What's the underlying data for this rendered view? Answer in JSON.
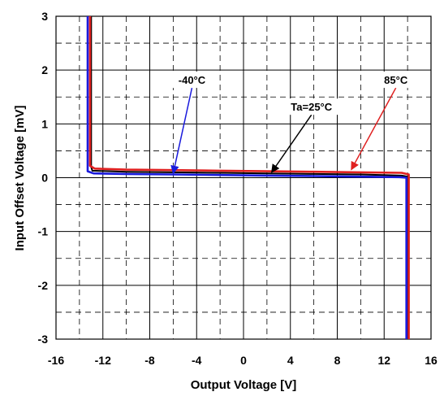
{
  "chart_data": {
    "type": "line",
    "title": "",
    "xlabel": "Output Voltage [V]",
    "ylabel": "Input Offset Voltage [mV]",
    "xlim": [
      -16,
      16
    ],
    "ylim": [
      -3,
      3
    ],
    "x_ticks": [
      -16,
      -12,
      -8,
      -4,
      0,
      4,
      8,
      12,
      16
    ],
    "y_ticks": [
      -3,
      -2,
      -1,
      0,
      1,
      2,
      3
    ],
    "x_minor_step": 2,
    "y_minor_step": 0.5,
    "grid": true,
    "legend": "none",
    "series": [
      {
        "name": "Ta=25°C",
        "color": "#000000",
        "x": [
          -13.0,
          -13.0,
          -12.9,
          -10,
          -6,
          -2,
          2,
          6,
          10,
          13.5,
          14.0,
          14.0
        ],
        "y": [
          3.0,
          0.2,
          0.13,
          0.11,
          0.1,
          0.09,
          0.08,
          0.07,
          0.06,
          0.04,
          0.02,
          -3.0
        ]
      },
      {
        "name": "-40°C",
        "color": "#1a1adc",
        "x": [
          -13.3,
          -13.3,
          -12.8,
          -10,
          -6,
          -2,
          2,
          6,
          10,
          13.3,
          13.9,
          13.9
        ],
        "y": [
          3.0,
          0.12,
          0.08,
          0.07,
          0.06,
          0.05,
          0.04,
          0.03,
          0.02,
          0.01,
          0.0,
          -3.0
        ]
      },
      {
        "name": "85°C",
        "color": "#e02020",
        "x": [
          -13.1,
          -13.1,
          -12.7,
          -10,
          -6,
          -2,
          2,
          6,
          10,
          13.5,
          14.1,
          14.1
        ],
        "y": [
          3.0,
          0.22,
          0.17,
          0.15,
          0.14,
          0.13,
          0.12,
          0.11,
          0.1,
          0.09,
          0.06,
          -3.0
        ]
      }
    ],
    "annotations": [
      {
        "label": "-40°C",
        "color": "#1a1adc",
        "box_x": -4.4,
        "box_y": 1.82,
        "target_x": -6.0,
        "target_y": 0.08
      },
      {
        "label": "Ta=25°C",
        "color": "#000000",
        "box_x": 5.8,
        "box_y": 1.32,
        "target_x": 2.4,
        "target_y": 0.1
      },
      {
        "label": "85°C",
        "color": "#e02020",
        "box_x": 13.0,
        "box_y": 1.82,
        "target_x": 9.2,
        "target_y": 0.15
      }
    ]
  }
}
